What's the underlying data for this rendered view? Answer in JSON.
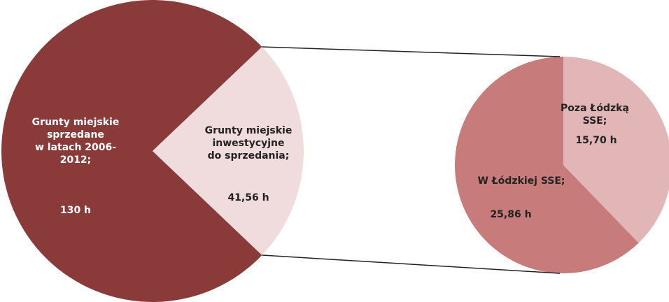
{
  "chart_data": [
    {
      "type": "pie",
      "categories": [
        "Grunty miejskie\nsprzedane\nw latach 2006-\n2012;",
        "Grunty miejskie\ninwestycyjne\ndo sprzedania;"
      ],
      "values": [
        130,
        41.56
      ],
      "value_labels": [
        "130 h",
        "41,56 h"
      ],
      "colors": [
        "#8b3a3a",
        "#f0dcdc"
      ]
    },
    {
      "type": "pie",
      "categories": [
        "W Łódzkiej SSE;",
        "Poza Łódzką SSE;"
      ],
      "values": [
        25.86,
        15.7
      ],
      "value_labels": [
        "25,86 h",
        "15,70 h"
      ],
      "colors": [
        "#c77b7b",
        "#e2b6b6"
      ]
    }
  ]
}
